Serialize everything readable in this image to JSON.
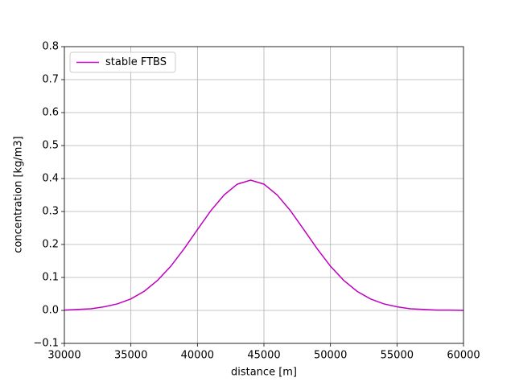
{
  "chart_data": {
    "type": "line",
    "xlabel": "distance [m]",
    "ylabel": "concentration [kg/m3]",
    "x": [
      30000,
      31000,
      32000,
      33000,
      34000,
      35000,
      36000,
      37000,
      38000,
      39000,
      40000,
      41000,
      42000,
      43000,
      44000,
      45000,
      46000,
      47000,
      48000,
      49000,
      50000,
      51000,
      52000,
      53000,
      54000,
      55000,
      56000,
      57000,
      58000,
      59000,
      60000
    ],
    "series": [
      {
        "name": "stable FTBS",
        "color": "#bf00bf",
        "values": [
          0.001,
          0.003,
          0.005,
          0.011,
          0.02,
          0.035,
          0.058,
          0.091,
          0.134,
          0.187,
          0.245,
          0.302,
          0.35,
          0.383,
          0.395,
          0.383,
          0.35,
          0.302,
          0.245,
          0.187,
          0.134,
          0.091,
          0.058,
          0.035,
          0.02,
          0.011,
          0.005,
          0.003,
          0.001,
          0.001,
          0.0
        ]
      }
    ],
    "xlim": [
      30000,
      60000
    ],
    "ylim": [
      -0.1,
      0.8
    ],
    "xticks": [
      30000,
      35000,
      40000,
      45000,
      50000,
      55000,
      60000
    ],
    "yticks": [
      {
        "value": -0.1,
        "label": "−0.1"
      },
      {
        "value": 0,
        "label": "0.0"
      },
      {
        "value": 0.1,
        "label": "0.1"
      },
      {
        "value": 0.2,
        "label": "0.2"
      },
      {
        "value": 0.3,
        "label": "0.3"
      },
      {
        "value": 0.4,
        "label": "0.4"
      },
      {
        "value": 0.5,
        "label": "0.5"
      },
      {
        "value": 0.6,
        "label": "0.6"
      },
      {
        "value": 0.7,
        "label": "0.7"
      },
      {
        "value": 0.8,
        "label": "0.8"
      }
    ],
    "grid": true,
    "legend": "upper left"
  }
}
